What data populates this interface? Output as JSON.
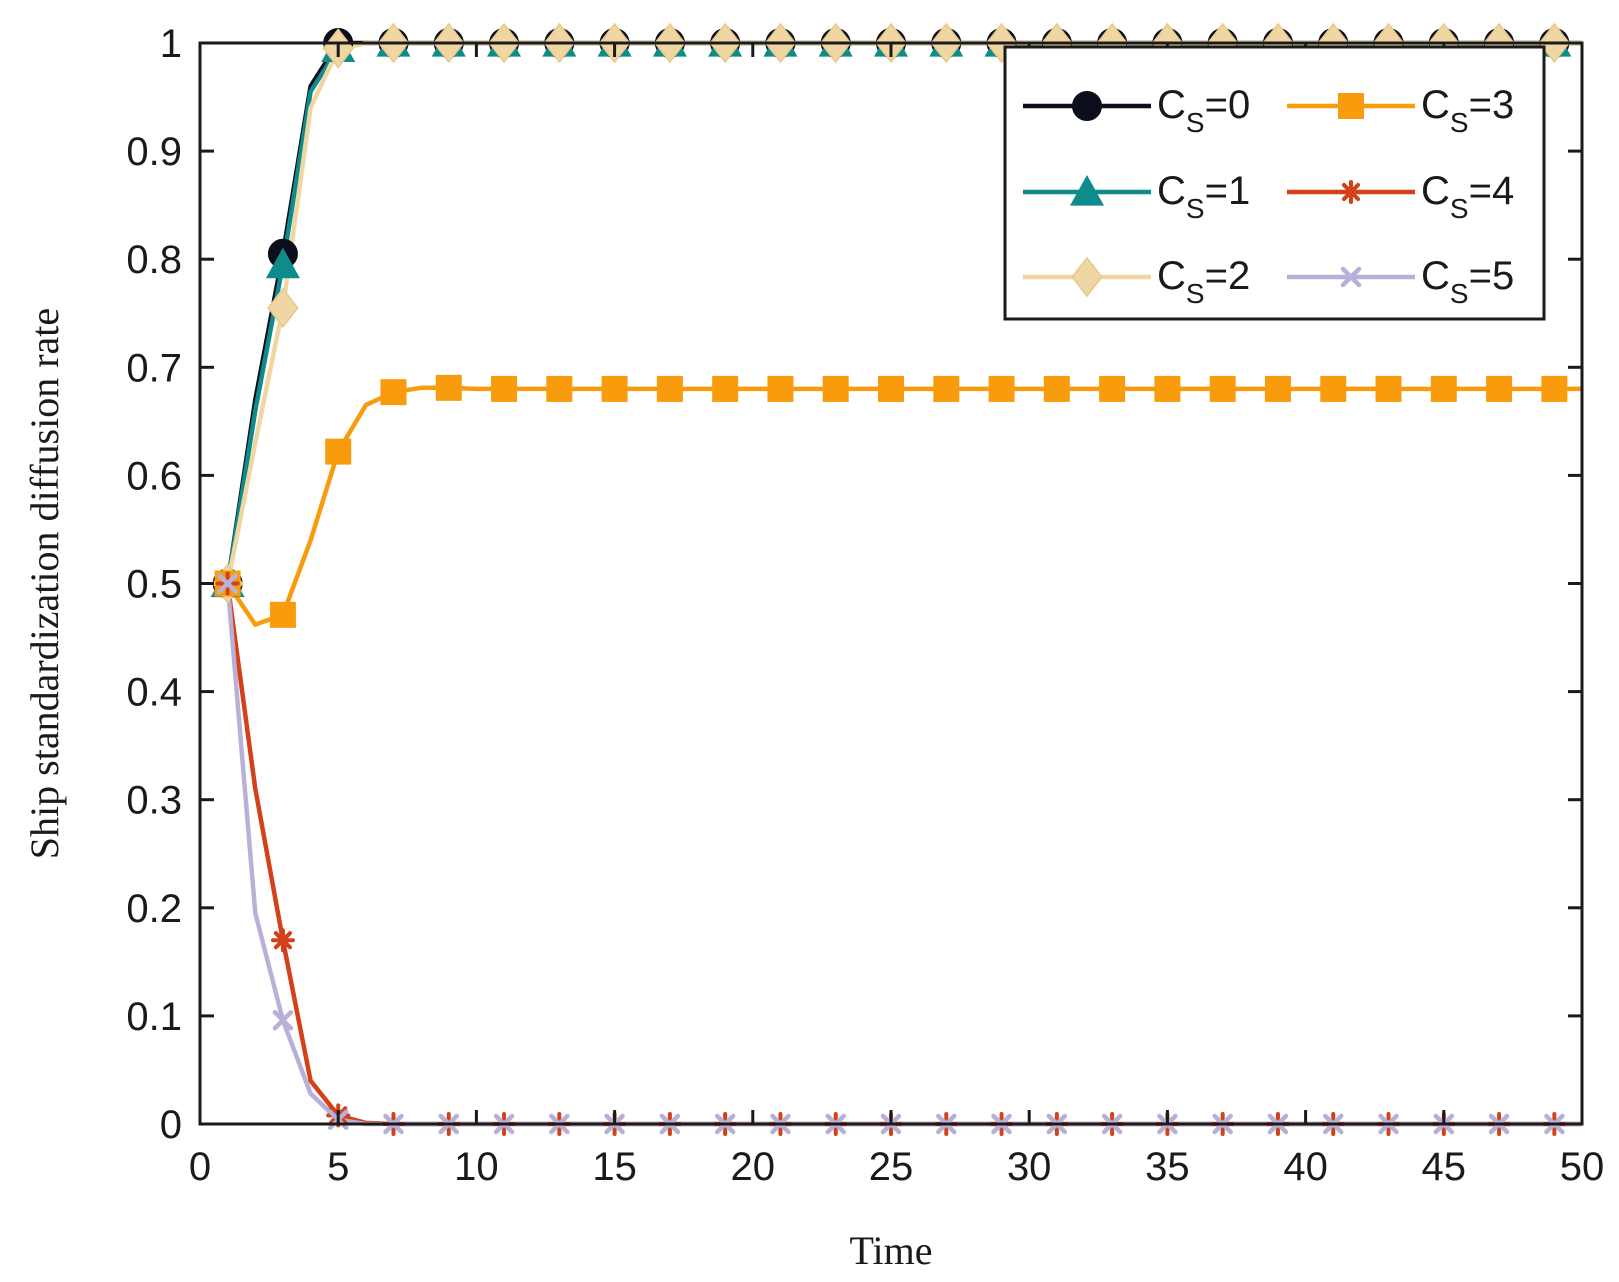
{
  "chart_data": {
    "type": "line",
    "title": "",
    "xlabel": "Time",
    "ylabel": "Ship standardization diffusion rate",
    "xlim": [
      0,
      50
    ],
    "ylim": [
      0,
      1
    ],
    "xticks": [
      "0",
      "5",
      "10",
      "15",
      "20",
      "25",
      "30",
      "35",
      "40",
      "45",
      "50"
    ],
    "yticks": [
      "0",
      "0.1",
      "0.2",
      "0.3",
      "0.4",
      "0.5",
      "0.6",
      "0.7",
      "0.8",
      "0.9",
      "1"
    ],
    "grid": false,
    "legend_position": "top-right",
    "x": [
      1,
      2,
      3,
      4,
      5,
      6,
      7,
      8,
      9,
      10,
      11,
      12,
      13,
      14,
      15,
      16,
      17,
      18,
      19,
      20,
      21,
      22,
      23,
      24,
      25,
      26,
      27,
      28,
      29,
      30,
      31,
      32,
      33,
      34,
      35,
      36,
      37,
      38,
      39,
      40,
      41,
      42,
      43,
      44,
      45,
      46,
      47,
      48,
      49,
      50
    ],
    "marker_x": [
      1,
      3,
      5,
      7,
      9,
      11,
      13,
      15,
      17,
      19,
      21,
      23,
      25,
      27,
      29,
      31,
      33,
      35,
      37,
      39,
      41,
      43,
      45,
      47,
      49
    ],
    "series": [
      {
        "name": "C",
        "subscript": "S",
        "suffix": "=0",
        "color": "#0b0f1c",
        "marker": "circle",
        "values": [
          0.5,
          0.67,
          0.805,
          0.96,
          1,
          1,
          1,
          1,
          1,
          1,
          1,
          1,
          1,
          1,
          1,
          1,
          1,
          1,
          1,
          1,
          1,
          1,
          1,
          1,
          1,
          1,
          1,
          1,
          1,
          1,
          1,
          1,
          1,
          1,
          1,
          1,
          1,
          1,
          1,
          1,
          1,
          1,
          1,
          1,
          1,
          1,
          1,
          1,
          1,
          1
        ]
      },
      {
        "name": "C",
        "subscript": "S",
        "suffix": "=1",
        "color": "#0e8c8c",
        "marker": "triangle",
        "values": [
          0.5,
          0.66,
          0.795,
          0.955,
          0.995,
          1,
          1,
          1,
          1,
          1,
          1,
          1,
          1,
          1,
          1,
          1,
          1,
          1,
          1,
          1,
          1,
          1,
          1,
          1,
          1,
          1,
          1,
          1,
          1,
          1,
          1,
          1,
          1,
          1,
          1,
          1,
          1,
          1,
          1,
          1,
          1,
          1,
          1,
          1,
          1,
          1,
          1,
          1,
          1,
          1
        ]
      },
      {
        "name": "C",
        "subscript": "S",
        "suffix": "=2",
        "color": "#f0d6a3",
        "marker": "diamond",
        "values": [
          0.5,
          0.63,
          0.755,
          0.94,
          0.995,
          1,
          1,
          1,
          1,
          1,
          1,
          1,
          1,
          1,
          1,
          1,
          1,
          1,
          1,
          1,
          1,
          1,
          1,
          1,
          1,
          1,
          1,
          1,
          1,
          1,
          1,
          1,
          1,
          1,
          1,
          1,
          1,
          1,
          1,
          1,
          1,
          1,
          1,
          1,
          1,
          1,
          1,
          1,
          1,
          1
        ]
      },
      {
        "name": "C",
        "subscript": "S",
        "suffix": "=3",
        "color": "#f89c0e",
        "marker": "square",
        "values": [
          0.5,
          0.462,
          0.471,
          0.54,
          0.622,
          0.665,
          0.677,
          0.681,
          0.681,
          0.68,
          0.68,
          0.68,
          0.68,
          0.68,
          0.68,
          0.68,
          0.68,
          0.68,
          0.68,
          0.68,
          0.68,
          0.68,
          0.68,
          0.68,
          0.68,
          0.68,
          0.68,
          0.68,
          0.68,
          0.68,
          0.68,
          0.68,
          0.68,
          0.68,
          0.68,
          0.68,
          0.68,
          0.68,
          0.68,
          0.68,
          0.68,
          0.68,
          0.68,
          0.68,
          0.68,
          0.68,
          0.68,
          0.68,
          0.68,
          0.68
        ]
      },
      {
        "name": "C",
        "subscript": "S",
        "suffix": "=4",
        "color": "#d4401a",
        "marker": "asterisk",
        "values": [
          0.5,
          0.31,
          0.17,
          0.04,
          0.008,
          0.001,
          0,
          0,
          0,
          0,
          0,
          0,
          0,
          0,
          0,
          0,
          0,
          0,
          0,
          0,
          0,
          0,
          0,
          0,
          0,
          0,
          0,
          0,
          0,
          0,
          0,
          0,
          0,
          0,
          0,
          0,
          0,
          0,
          0,
          0,
          0,
          0,
          0,
          0,
          0,
          0,
          0,
          0,
          0,
          0
        ]
      },
      {
        "name": "C",
        "subscript": "S",
        "suffix": "=5",
        "color": "#b9b0d8",
        "marker": "x",
        "values": [
          0.5,
          0.195,
          0.096,
          0.028,
          0.004,
          0,
          0,
          0,
          0,
          0,
          0,
          0,
          0,
          0,
          0,
          0,
          0,
          0,
          0,
          0,
          0,
          0,
          0,
          0,
          0,
          0,
          0,
          0,
          0,
          0,
          0,
          0,
          0,
          0,
          0,
          0,
          0,
          0,
          0,
          0,
          0,
          0,
          0,
          0,
          0,
          0,
          0,
          0,
          0,
          0
        ]
      }
    ],
    "legend_order": [
      0,
      3,
      1,
      4,
      2,
      5
    ]
  }
}
